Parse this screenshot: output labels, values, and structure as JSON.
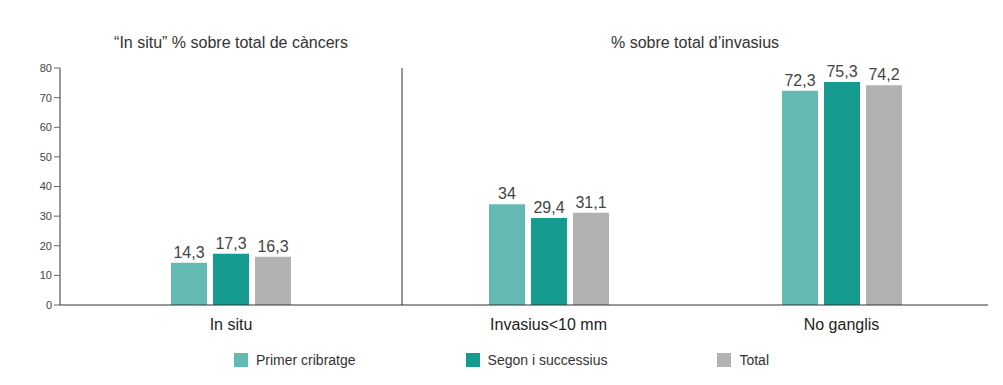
{
  "chart_data": [
    {
      "type": "bar",
      "title": "“In situ” % sobre total de càncers",
      "categories": [
        "In situ"
      ],
      "series": [
        {
          "name": "Primer cribratge",
          "color": "#62bab3",
          "values": [
            14.3
          ],
          "value_labels": [
            "14,3"
          ]
        },
        {
          "name": "Segon i successius",
          "color": "#169b91",
          "values": [
            17.3
          ],
          "value_labels": [
            "17,3"
          ]
        },
        {
          "name": "Total",
          "color": "#b2b2b2",
          "values": [
            16.3
          ],
          "value_labels": [
            "16,3"
          ]
        }
      ],
      "ylim": [
        0,
        80
      ],
      "yticks": [
        0,
        10,
        20,
        30,
        40,
        50,
        60,
        70,
        80
      ],
      "data_labels": true,
      "legend": "bottom"
    },
    {
      "type": "bar",
      "title": "% sobre total d’invasius",
      "categories": [
        "Invasius<10 mm",
        "No ganglis"
      ],
      "series": [
        {
          "name": "Primer cribratge",
          "color": "#62bab3",
          "values": [
            34,
            72.3
          ],
          "value_labels": [
            "34",
            "72,3"
          ]
        },
        {
          "name": "Segon i successius",
          "color": "#169b91",
          "values": [
            29.4,
            75.3
          ],
          "value_labels": [
            "29,4",
            "75,3"
          ]
        },
        {
          "name": "Total",
          "color": "#b2b2b2",
          "values": [
            31.1,
            74.2
          ],
          "value_labels": [
            "31,1",
            "74,2"
          ]
        }
      ],
      "ylim": [
        0,
        80
      ],
      "data_labels": true,
      "tick_labels": "x"
    }
  ]
}
